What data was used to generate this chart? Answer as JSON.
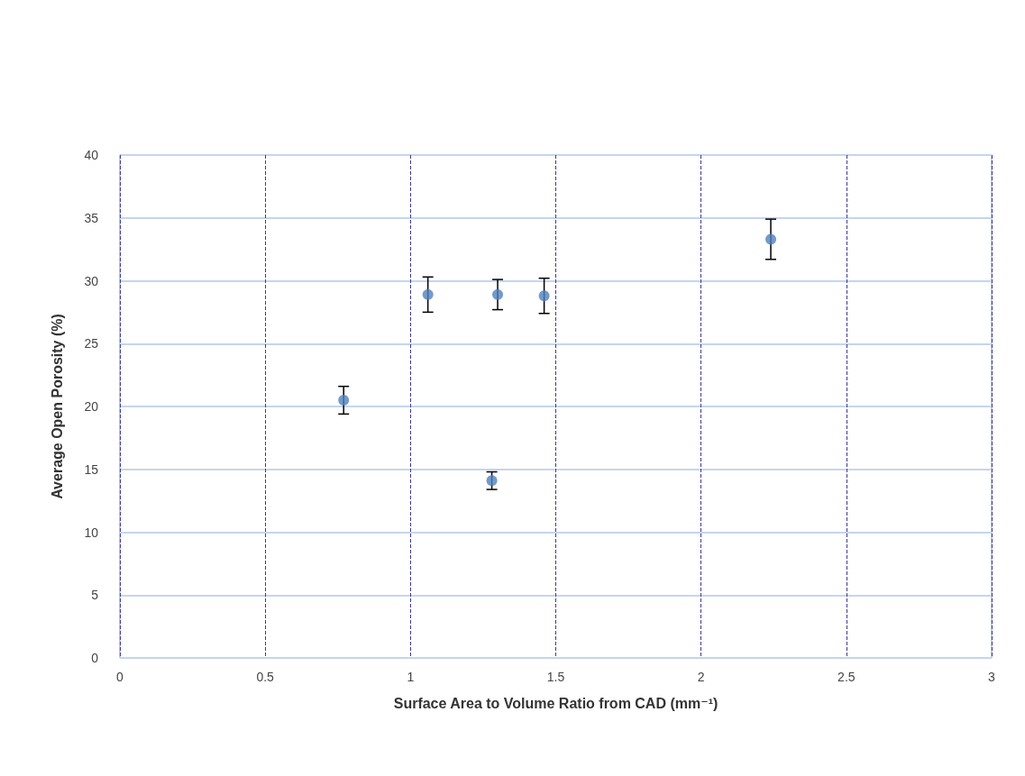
{
  "chart_data": {
    "type": "scatter",
    "xlabel": "Surface Area to Volume Ratio from CAD (mm⁻¹)",
    "ylabel": "Average Open Porosity (%)",
    "x": [
      0.77,
      1.06,
      1.28,
      1.3,
      1.46,
      2.24
    ],
    "values": [
      20.5,
      28.9,
      14.1,
      28.9,
      28.8,
      33.3
    ],
    "errors": [
      1.1,
      1.4,
      0.7,
      1.2,
      1.4,
      1.6
    ],
    "color": "#4f81bd",
    "marker": "circle",
    "xlim": [
      0,
      3
    ],
    "xticks": [
      0,
      0.5,
      1,
      1.5,
      2,
      2.5,
      3
    ],
    "ylim": [
      0,
      40
    ],
    "yticks": [
      0,
      5,
      10,
      15,
      20,
      25,
      30,
      35,
      40
    ],
    "grid": true
  }
}
